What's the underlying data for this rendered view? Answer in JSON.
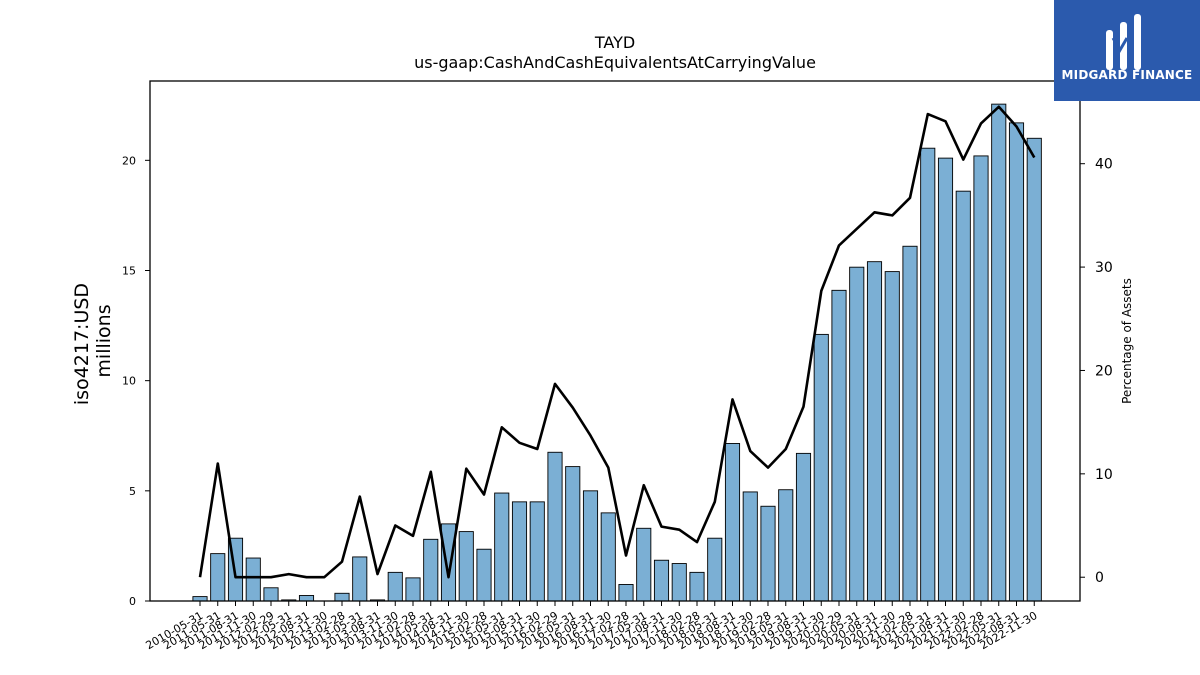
{
  "brand": {
    "name": "MIDGARD FINANCE",
    "color": "#2b5aad"
  },
  "chart_data": {
    "type": "bar",
    "title": "TAYD",
    "subtitle": "us-gaap:CashAndCashEquivalentsAtCarryingValue",
    "ylabel": "iso4217:USD\nmillions",
    "y2label": "Percentage of Assets",
    "ylim": [
      0,
      23.6
    ],
    "y2lim": [
      -2.3,
      48.0
    ],
    "yticks": [
      0,
      5,
      10,
      15,
      20
    ],
    "y2ticks": [
      0,
      10,
      20,
      30,
      40
    ],
    "bar_color": "#7bafd4",
    "line_color": "#000000",
    "categories": [
      "2010-05-31",
      "2011-05-31",
      "2011-08-31",
      "2011-11-30",
      "2012-02-29",
      "2012-05-31",
      "2012-08-31",
      "2012-11-30",
      "2013-02-28",
      "2013-05-31",
      "2013-08-31",
      "2013-11-30",
      "2014-02-28",
      "2014-05-31",
      "2014-08-31",
      "2014-11-30",
      "2015-02-28",
      "2015-05-31",
      "2015-08-31",
      "2015-11-30",
      "2016-02-29",
      "2016-05-31",
      "2016-08-31",
      "2016-11-30",
      "2017-02-28",
      "2017-05-31",
      "2017-08-31",
      "2017-11-30",
      "2018-02-28",
      "2018-05-31",
      "2018-08-31",
      "2018-11-30",
      "2019-02-28",
      "2019-05-31",
      "2019-08-31",
      "2019-11-30",
      "2020-02-29",
      "2020-05-31",
      "2020-08-31",
      "2020-11-30",
      "2021-02-28",
      "2021-05-31",
      "2021-08-31",
      "2021-11-30",
      "2022-02-28",
      "2022-05-31",
      "2022-08-31",
      "2022-11-30"
    ],
    "series": [
      {
        "type": "bar",
        "axis": "left",
        "values": [
          0.2,
          2.15,
          2.85,
          1.95,
          0.6,
          0.05,
          0.25,
          0.0,
          0.35,
          2.0,
          0.05,
          1.3,
          1.05,
          2.8,
          3.5,
          3.15,
          2.35,
          4.9,
          4.5,
          4.5,
          6.75,
          6.1,
          5.0,
          4.0,
          0.75,
          3.3,
          1.85,
          1.7,
          1.3,
          2.85,
          7.15,
          4.95,
          4.3,
          5.05,
          6.7,
          12.1,
          14.1,
          15.15,
          15.4,
          14.95,
          16.1,
          20.55,
          20.1,
          18.6,
          20.2,
          22.55,
          21.7,
          21.0
        ]
      },
      {
        "type": "line",
        "axis": "right",
        "values": [
          0.0,
          11.0,
          0.0,
          0.0,
          0.0,
          0.3,
          0.0,
          0.0,
          1.5,
          7.8,
          0.3,
          5.0,
          4.0,
          10.2,
          0.0,
          10.5,
          8.0,
          14.5,
          13.0,
          12.4,
          18.7,
          16.4,
          13.7,
          10.6,
          2.1,
          8.9,
          4.9,
          4.6,
          3.4,
          7.3,
          17.2,
          12.2,
          10.6,
          12.4,
          16.5,
          27.7,
          32.1,
          33.7,
          35.3,
          35.0,
          36.7,
          44.8,
          44.1,
          40.4,
          43.9,
          45.5,
          43.6,
          40.6
        ]
      }
    ]
  }
}
